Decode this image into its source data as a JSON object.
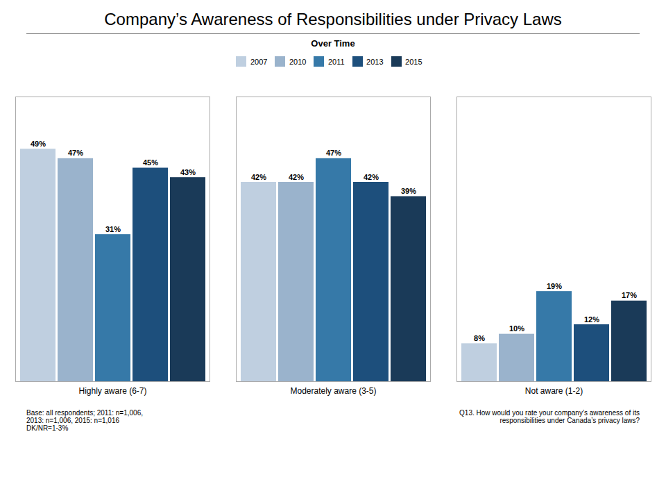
{
  "chart_data": {
    "type": "bar",
    "title": "Company’s Awareness of Responsibilities under Privacy Laws",
    "subtitle": "Over Time",
    "categories": [
      "Highly aware (6-7)",
      "Moderately aware (3-5)",
      "Not aware (1-2)"
    ],
    "series": [
      {
        "name": "2007",
        "color": "#bfcfe0",
        "values": [
          49,
          42,
          8
        ],
        "value_labels": [
          "49%",
          "42%",
          "8%"
        ]
      },
      {
        "name": "2010",
        "color": "#9ab3cc",
        "values": [
          47,
          42,
          10
        ],
        "value_labels": [
          "47%",
          "42%",
          "10%"
        ]
      },
      {
        "name": "2011",
        "color": "#3679a8",
        "values": [
          31,
          47,
          19
        ],
        "value_labels": [
          "31%",
          "47%",
          "19%"
        ]
      },
      {
        "name": "2013",
        "color": "#1d4f7c",
        "values": [
          45,
          42,
          12
        ],
        "value_labels": [
          "45%",
          "42%",
          "12%"
        ]
      },
      {
        "name": "2015",
        "color": "#1a3a58",
        "values": [
          43,
          39,
          17
        ],
        "value_labels": [
          "43%",
          "39%",
          "17%"
        ]
      }
    ],
    "ylim": [
      0,
      60
    ],
    "grid": false,
    "legend": "top",
    "data_labels": true,
    "tick_labels": "x",
    "annotations": [
      "Base: all respondents; 2011: n=1,006,\n2013: n=1,006, 2015: n=1,016\nDK/NR=1-3%",
      "Q13. How would you rate your company’s awareness of its\nresponsibilities under Canada’s privacy laws?"
    ]
  }
}
